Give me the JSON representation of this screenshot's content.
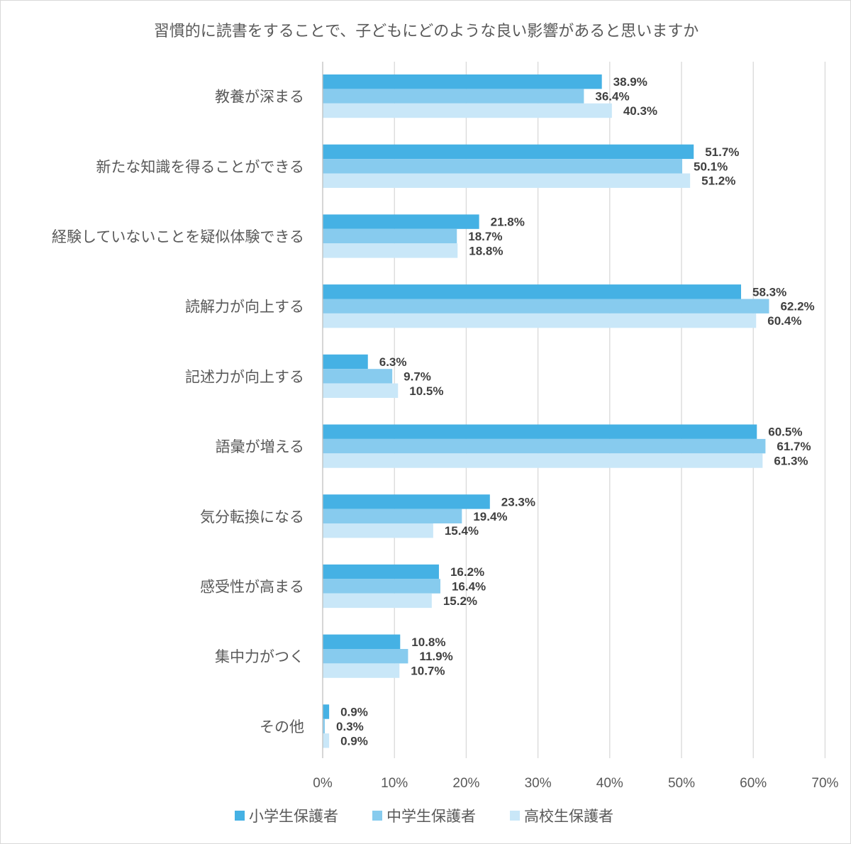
{
  "chart_data": {
    "type": "bar",
    "orientation": "horizontal",
    "title": "習慣的に読書をすることで、子どもにどのような良い影響があると思いますか",
    "categories": [
      "教養が深まる",
      "新たな知識を得ることができる",
      "経験していないことを疑似体験できる",
      "読解力が向上する",
      "記述力が向上する",
      "語彙が増える",
      "気分転換になる",
      "感受性が高まる",
      "集中力がつく",
      "その他"
    ],
    "series": [
      {
        "name": "小学生保護者",
        "color": "#45b1e4",
        "values": [
          38.9,
          51.7,
          21.8,
          58.3,
          6.3,
          60.5,
          23.3,
          16.2,
          10.8,
          0.9
        ],
        "labels": [
          "38.9%",
          "51.7%",
          "21.8%",
          "58.3%",
          "6.3%",
          "60.5%",
          "23.3%",
          "16.2%",
          "10.8%",
          "0.9%"
        ]
      },
      {
        "name": "中学生保護者",
        "color": "#87cbee",
        "values": [
          36.4,
          50.1,
          18.7,
          62.2,
          9.7,
          61.7,
          19.4,
          16.4,
          11.9,
          0.3
        ],
        "labels": [
          "36.4%",
          "50.1%",
          "18.7%",
          "62.2%",
          "9.7%",
          "61.7%",
          "19.4%",
          "16.4%",
          "11.9%",
          "0.3%"
        ]
      },
      {
        "name": "高校生保護者",
        "color": "#c9e7f8",
        "values": [
          40.3,
          51.2,
          18.8,
          60.4,
          10.5,
          61.3,
          15.4,
          15.2,
          10.7,
          0.9
        ],
        "labels": [
          "40.3%",
          "51.2%",
          "18.8%",
          "60.4%",
          "10.5%",
          "61.3%",
          "15.4%",
          "15.2%",
          "10.7%",
          "0.9%"
        ]
      }
    ],
    "xlim": [
      0,
      70
    ],
    "xticks": [
      0,
      10,
      20,
      30,
      40,
      50,
      60,
      70
    ],
    "xtick_labels": [
      "0%",
      "10%",
      "20%",
      "30%",
      "40%",
      "50%",
      "60%",
      "70%"
    ],
    "grid": true,
    "legend_position": "bottom"
  }
}
